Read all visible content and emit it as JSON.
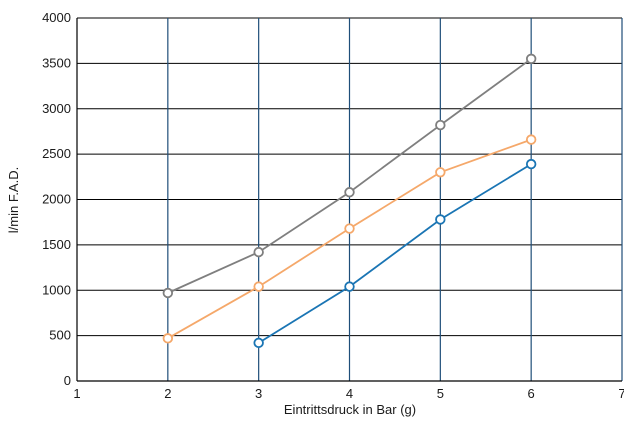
{
  "chart_data": {
    "type": "line",
    "title": "",
    "xlabel": "Eintrittsdruck in Bar (g)",
    "ylabel": "l/min F.A.D.",
    "xlim": [
      1,
      7
    ],
    "ylim": [
      0,
      4000
    ],
    "x_ticks": [
      1,
      2,
      3,
      4,
      5,
      6,
      7
    ],
    "y_ticks": [
      0,
      500,
      1000,
      1500,
      2000,
      2500,
      3000,
      3500,
      4000
    ],
    "grid": true,
    "legend": "none",
    "grid_colors": {
      "vertical": "#1f4e79",
      "horizontal": "#000000"
    },
    "series": [
      {
        "color": "#7f7f7f",
        "x": [
          2,
          3,
          4,
          5,
          6
        ],
        "values": [
          970,
          1420,
          2080,
          2820,
          3550
        ]
      },
      {
        "color": "#f5a86a",
        "x": [
          2,
          3,
          4,
          5,
          6
        ],
        "values": [
          470,
          1040,
          1680,
          2300,
          2660
        ]
      },
      {
        "color": "#1a75b4",
        "x": [
          3,
          4,
          5,
          6
        ],
        "values": [
          420,
          1040,
          1780,
          2390
        ]
      }
    ]
  }
}
